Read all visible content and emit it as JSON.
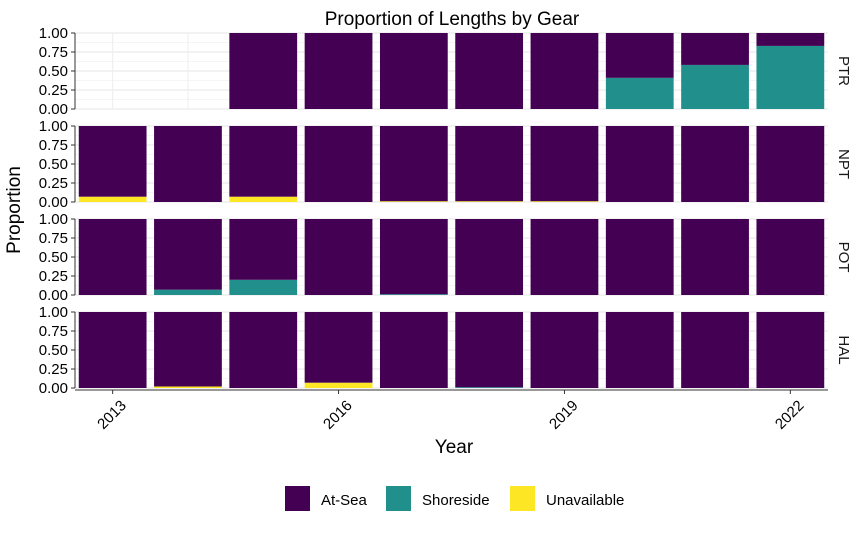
{
  "chart_data": {
    "type": "bar",
    "stacked": true,
    "title": "Proportion of Lengths by Gear",
    "xlabel": "Year",
    "ylabel": "Proportion",
    "ylim": [
      0,
      1
    ],
    "y_ticks": [
      "0.00",
      "0.25",
      "0.50",
      "0.75",
      "1.00"
    ],
    "x": [
      2013,
      2014,
      2015,
      2016,
      2017,
      2018,
      2019,
      2020,
      2021,
      2022
    ],
    "x_tick_labels": [
      "2013",
      "2016",
      "2019",
      "2022"
    ],
    "x_tick_years": [
      2013,
      2016,
      2019,
      2022
    ],
    "grid": true,
    "legend_position": "bottom",
    "legend": [
      {
        "name": "At-Sea",
        "color": "#440154"
      },
      {
        "name": "Shoreside",
        "color": "#21908C"
      },
      {
        "name": "Unavailable",
        "color": "#FDE725"
      }
    ],
    "panels": [
      {
        "label": "PTR",
        "series": [
          {
            "name": "Unavailable",
            "values": [
              null,
              null,
              0,
              0,
              0,
              0,
              0,
              0,
              0,
              0
            ]
          },
          {
            "name": "Shoreside",
            "values": [
              null,
              null,
              0,
              0,
              0,
              0,
              0,
              0.41,
              0.58,
              0.83
            ]
          },
          {
            "name": "At-Sea",
            "values": [
              null,
              null,
              1,
              1,
              1,
              1,
              1,
              0.59,
              0.42,
              0.17
            ]
          }
        ]
      },
      {
        "label": "NPT",
        "series": [
          {
            "name": "Unavailable",
            "values": [
              0.07,
              0,
              0.07,
              0,
              0.01,
              0.01,
              0.01,
              0,
              0,
              0
            ]
          },
          {
            "name": "Shoreside",
            "values": [
              0,
              0,
              0,
              0,
              0,
              0,
              0,
              0,
              0,
              0
            ]
          },
          {
            "name": "At-Sea",
            "values": [
              0.93,
              1,
              0.93,
              1,
              0.99,
              0.99,
              0.99,
              1,
              1,
              1
            ]
          }
        ]
      },
      {
        "label": "POT",
        "series": [
          {
            "name": "Unavailable",
            "values": [
              0,
              0,
              0,
              0,
              0,
              0,
              0,
              0,
              0,
              0
            ]
          },
          {
            "name": "Shoreside",
            "values": [
              0,
              0.07,
              0.2,
              0,
              0.01,
              0,
              0,
              0,
              0,
              0
            ]
          },
          {
            "name": "At-Sea",
            "values": [
              1,
              0.93,
              0.8,
              1,
              0.99,
              1,
              1,
              1,
              1,
              1
            ]
          }
        ]
      },
      {
        "label": "HAL",
        "series": [
          {
            "name": "Unavailable",
            "values": [
              0,
              0.02,
              0,
              0.07,
              0,
              0,
              0,
              0,
              0,
              0
            ]
          },
          {
            "name": "Shoreside",
            "values": [
              0,
              0,
              0,
              0,
              0,
              0.01,
              0,
              0,
              0,
              0
            ]
          },
          {
            "name": "At-Sea",
            "values": [
              1,
              0.98,
              1,
              0.93,
              1,
              0.99,
              1,
              1,
              1,
              1
            ]
          }
        ]
      }
    ]
  }
}
